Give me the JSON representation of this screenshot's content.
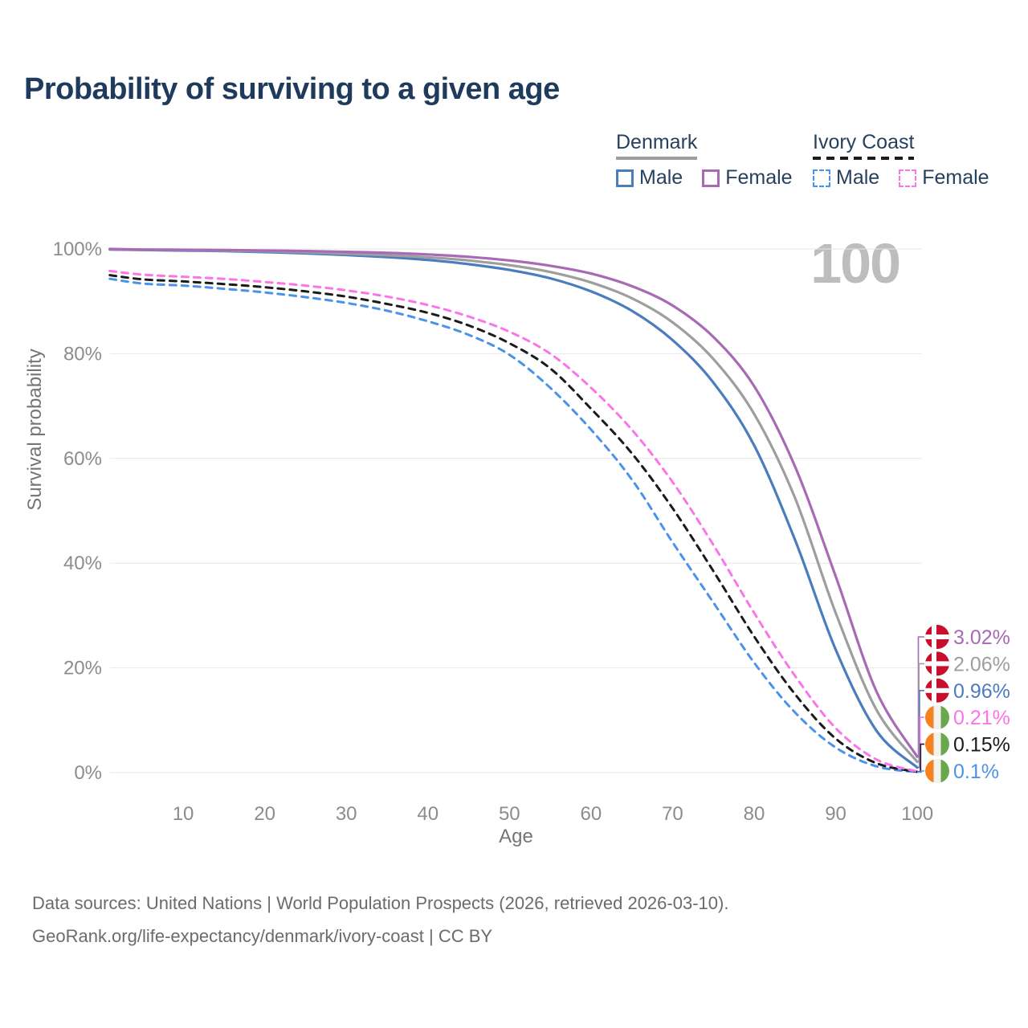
{
  "title": "Probability of surviving to a given age",
  "watermark": "100",
  "legend": {
    "groups": [
      {
        "label": "Denmark",
        "line_style": "solid",
        "underline_color": "#9e9e9e",
        "items": [
          {
            "label": "Male",
            "color": "#4a7cbe",
            "dashed": false
          },
          {
            "label": "Female",
            "color": "#a869b5",
            "dashed": false
          }
        ]
      },
      {
        "label": "Ivory Coast",
        "line_style": "dashed",
        "underline_color": "#1b1b1b",
        "items": [
          {
            "label": "Male",
            "color": "#4b93ea",
            "dashed": true
          },
          {
            "label": "Female",
            "color": "#fb74e8",
            "dashed": true
          }
        ]
      }
    ]
  },
  "chart_data": {
    "type": "line",
    "title": "Probability of surviving to a given age",
    "xlabel": "Age",
    "ylabel": "Survival probability",
    "xlim": [
      1,
      100
    ],
    "ylim": [
      0,
      100
    ],
    "grid": true,
    "legend_position": "top-right",
    "hover_age": "100",
    "xticks": [
      10,
      20,
      30,
      40,
      50,
      60,
      70,
      80,
      90,
      100
    ],
    "yticks": [
      {
        "v": 0,
        "label": "0%"
      },
      {
        "v": 20,
        "label": "20%"
      },
      {
        "v": 40,
        "label": "40%"
      },
      {
        "v": 60,
        "label": "60%"
      },
      {
        "v": 80,
        "label": "80%"
      },
      {
        "v": 100,
        "label": "100%"
      }
    ],
    "ages": [
      1,
      5,
      10,
      15,
      20,
      25,
      30,
      35,
      40,
      45,
      50,
      55,
      60,
      65,
      70,
      75,
      80,
      85,
      90,
      95,
      100
    ],
    "series": [
      {
        "id": "denmark-female",
        "country": "Denmark",
        "sex": "Female",
        "color": "#a869b5",
        "dashed": false,
        "flag": "denmark",
        "end_label": "3.02%",
        "values": [
          100,
          99.9,
          99.85,
          99.8,
          99.7,
          99.6,
          99.45,
          99.25,
          98.95,
          98.5,
          97.8,
          96.8,
          95.3,
          92.9,
          89.2,
          83.2,
          73.8,
          58.5,
          37.5,
          15.5,
          3.02
        ]
      },
      {
        "id": "denmark-total",
        "country": "Denmark",
        "sex": "Both",
        "color": "#9e9e9e",
        "dashed": false,
        "flag": "denmark",
        "end_label": "2.06%",
        "values": [
          99.95,
          99.85,
          99.8,
          99.7,
          99.55,
          99.35,
          99.1,
          98.8,
          98.4,
          97.8,
          96.9,
          95.6,
          93.6,
          90.6,
          86,
          79,
          68.5,
          52.5,
          30.5,
          12,
          2.06
        ]
      },
      {
        "id": "denmark-male",
        "country": "Denmark",
        "sex": "Male",
        "color": "#4a7cbe",
        "dashed": false,
        "flag": "denmark",
        "end_label": "0.96%",
        "values": [
          99.9,
          99.8,
          99.7,
          99.6,
          99.4,
          99.15,
          98.85,
          98.45,
          97.9,
          97.1,
          96,
          94.4,
          91.9,
          88.2,
          82.6,
          74.5,
          62.5,
          44.5,
          23.5,
          8,
          0.96
        ]
      },
      {
        "id": "ivory-coast-female",
        "country": "Ivory Coast",
        "sex": "Female",
        "color": "#fb74e8",
        "dashed": true,
        "flag": "ivory-coast",
        "end_label": "0.21%",
        "values": [
          95.8,
          95.1,
          94.7,
          94.3,
          93.7,
          93,
          92.1,
          90.9,
          89.3,
          87.1,
          84.2,
          80,
          73.5,
          65.5,
          55.5,
          43.5,
          30.5,
          18.5,
          8.5,
          2.5,
          0.21
        ]
      },
      {
        "id": "ivory-coast-total",
        "country": "Ivory Coast",
        "sex": "Both",
        "color": "#1b1b1b",
        "dashed": true,
        "flag": "ivory-coast",
        "end_label": "0.15%",
        "values": [
          95,
          94.2,
          93.8,
          93.3,
          92.7,
          91.9,
          90.9,
          89.5,
          87.8,
          85.4,
          82,
          77.2,
          69.5,
          61,
          50.5,
          38.5,
          26,
          15,
          6.5,
          1.8,
          0.15
        ]
      },
      {
        "id": "ivory-coast-male",
        "country": "Ivory Coast",
        "sex": "Male",
        "color": "#4b93ea",
        "dashed": true,
        "flag": "ivory-coast",
        "end_label": "0.1%",
        "values": [
          94.3,
          93.4,
          93,
          92.4,
          91.7,
          90.8,
          89.7,
          88.2,
          86.2,
          83.6,
          79.8,
          73.5,
          65.5,
          56,
          44,
          32.5,
          21,
          11.5,
          4.8,
          1.2,
          0.1
        ]
      }
    ]
  },
  "flags": {
    "denmark": {
      "red": "#c8102e",
      "cross": "#ffffff"
    },
    "ivory_coast": {
      "orange": "#f58220",
      "white": "#f1f1ee",
      "green": "#6aa84f"
    }
  },
  "footer": {
    "line1": "Data sources: United Nations | World Population Prospects (2026, retrieved 2026-03-10).",
    "line2": "GeoRank.org/life-expectancy/denmark/ivory-coast | CC BY"
  }
}
